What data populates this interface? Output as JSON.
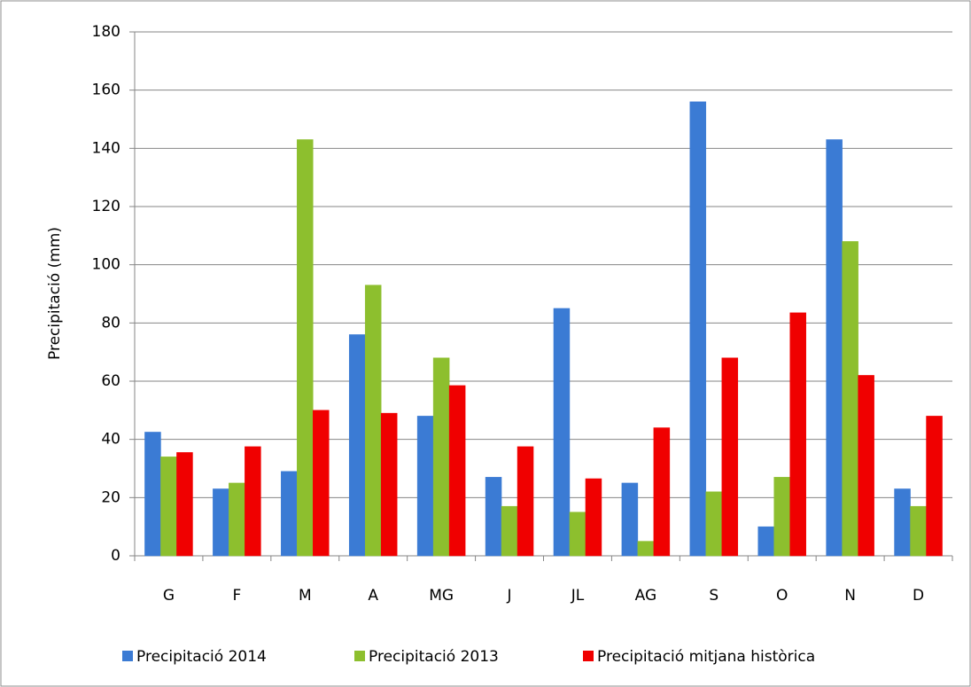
{
  "chart_data": {
    "type": "bar",
    "y_label": "Precipitació (mm)",
    "categories": [
      "G",
      "F",
      "M",
      "A",
      "MG",
      "J",
      "JL",
      "AG",
      "S",
      "O",
      "N",
      "D"
    ],
    "series": [
      {
        "name": "Precipitació 2014",
        "color": "#3b7bd4",
        "values": [
          42.5,
          23,
          29,
          76,
          48,
          27,
          85,
          25,
          156,
          10,
          143,
          23
        ]
      },
      {
        "name": "Precipitació 2013",
        "color": "#8dbf2e",
        "values": [
          34,
          25,
          143,
          93,
          68,
          17,
          15,
          5,
          22,
          27,
          108,
          17
        ]
      },
      {
        "name": "Precipitació mitjana històrica",
        "color": "#f00000",
        "values": [
          35.5,
          37.5,
          50,
          49,
          58.5,
          37.5,
          26.5,
          44,
          68,
          83.5,
          62,
          48
        ]
      }
    ],
    "ylim": [
      0,
      180
    ],
    "yticks": [
      0,
      20,
      40,
      60,
      80,
      100,
      120,
      140,
      160,
      180
    ],
    "grid": true,
    "legend": "bottom"
  }
}
